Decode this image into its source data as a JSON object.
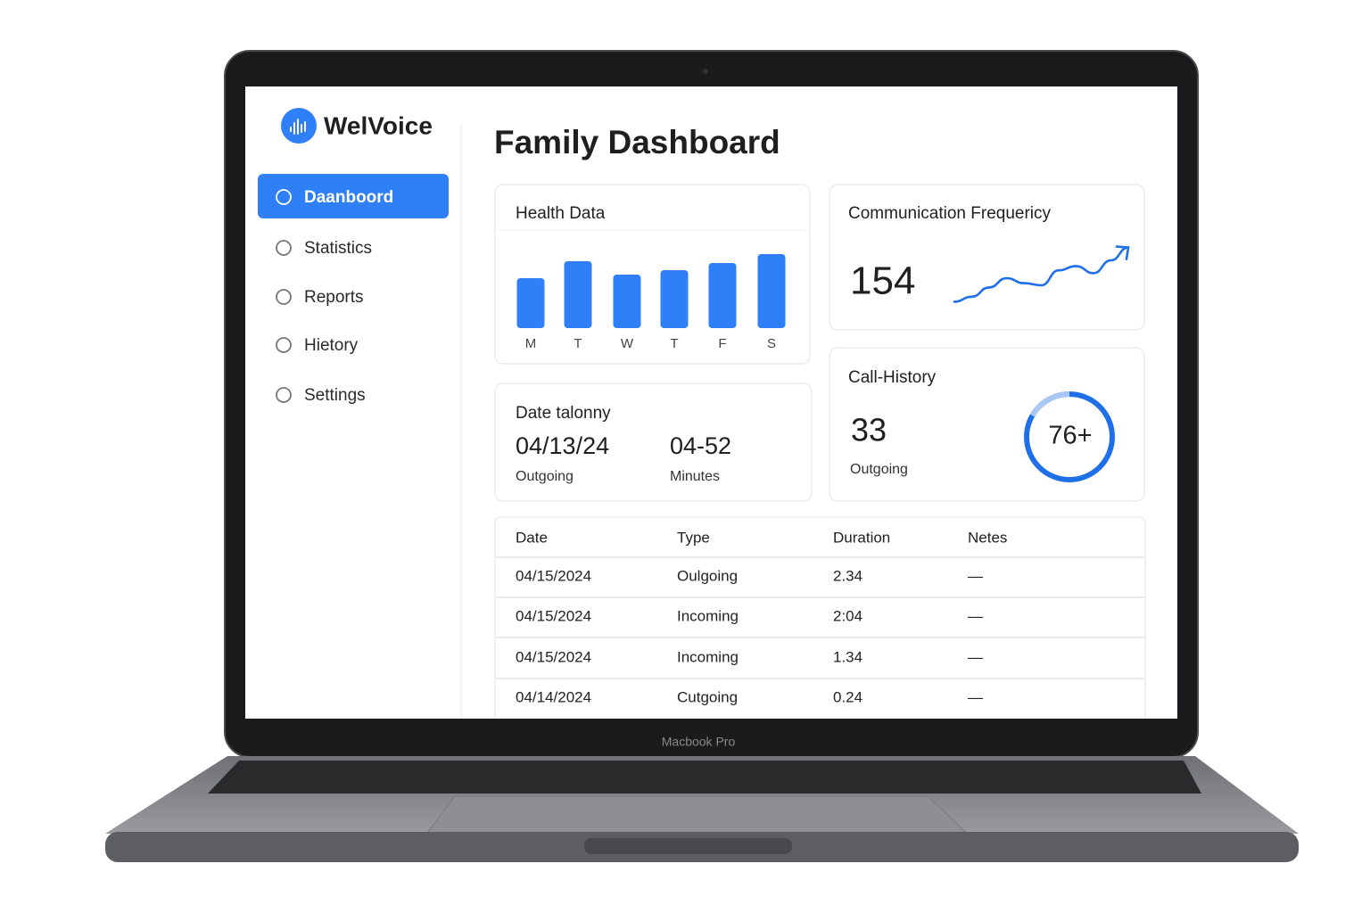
{
  "device": {
    "label": "Macbook Pro"
  },
  "sidebar": {
    "brand": "WelVoice",
    "nav": [
      "Daanboord",
      "Statistics",
      "Reports",
      "Hietory",
      "Settings"
    ]
  },
  "header": {
    "title": "Family Dashboard"
  },
  "chart_data": [
    {
      "type": "bar",
      "title": "Health Data",
      "categories": [
        "M",
        "T",
        "W",
        "T",
        "F",
        "S"
      ],
      "values": [
        56,
        75,
        60,
        65,
        73,
        83
      ],
      "color": "#2f80f6",
      "ylim": [
        0,
        100
      ]
    },
    {
      "type": "line",
      "title": "Communication Frequericy",
      "values": [
        12,
        19,
        32,
        45,
        38,
        35,
        56,
        62,
        52,
        70,
        88
      ],
      "color": "#1f6fe8",
      "ylim": [
        0,
        100
      ]
    }
  ],
  "communication": {
    "value": 154
  },
  "date_tally": {
    "title": "Date talonny",
    "items": [
      {
        "value": "04/13/24",
        "label": "Outgoing"
      },
      {
        "value": "04-52",
        "label": "Minutes"
      }
    ]
  },
  "call_history": {
    "title": "Call-History",
    "value": 33,
    "label": "Outgoing",
    "ring_label": "76+"
  },
  "table": {
    "columns": [
      "Date",
      "Type",
      "Duration",
      "Netes"
    ],
    "rows": [
      [
        "04/15/2024",
        "Oulgoing",
        "2.34",
        "—"
      ],
      [
        "04/15/2024",
        "Incoming",
        "2:04",
        "—"
      ],
      [
        "04/15/2024",
        "Incoming",
        "1.34",
        "—"
      ],
      [
        "04/14/2024",
        "Cutgoing",
        "0.24",
        "—"
      ]
    ]
  }
}
